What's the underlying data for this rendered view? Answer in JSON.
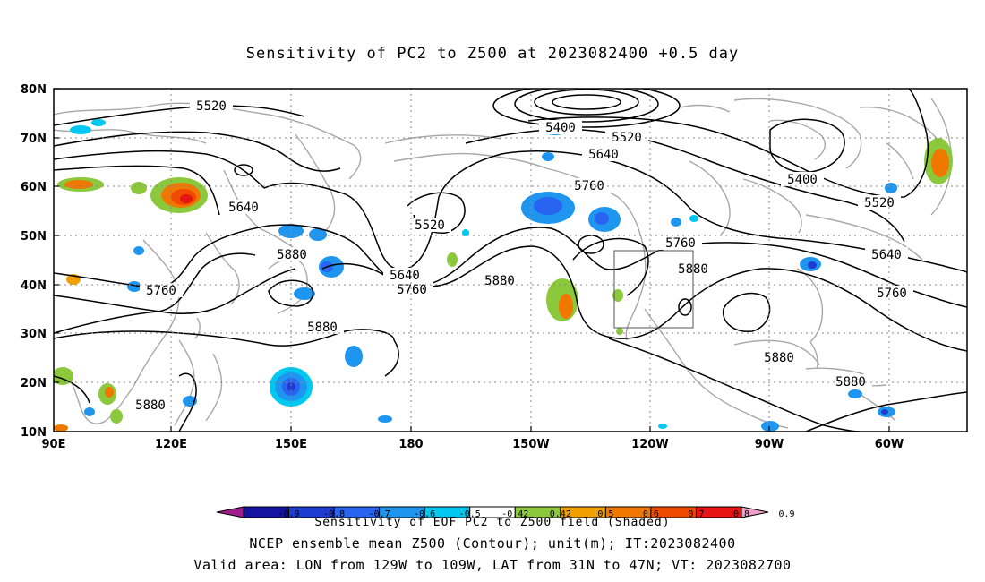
{
  "title": "Sensitivity of PC2 to Z500 at 2023082400 +0.5 day",
  "map": {
    "lat_labels": [
      "80N",
      "70N",
      "60N",
      "50N",
      "40N",
      "30N",
      "20N",
      "10N"
    ],
    "lon_labels": [
      "90E",
      "120E",
      "150E",
      "180",
      "150W",
      "120W",
      "90W",
      "60W"
    ],
    "contour_labels": [
      "5520",
      "5640",
      "5400",
      "5520",
      "5640",
      "5760",
      "5400",
      "5520",
      "5520",
      "5640",
      "5880",
      "5640",
      "5760",
      "5760",
      "5880",
      "5760",
      "5880",
      "5640",
      "5760",
      "5880",
      "5880",
      "5880",
      "5880",
      "5880"
    ],
    "valid_box": {
      "lon_from": "129W",
      "lon_to": "109W",
      "lat_from": "31N",
      "lat_to": "47N"
    }
  },
  "colorbar": {
    "tick_labels": [
      "-0.9",
      "-0.8",
      "-0.7",
      "-0.6",
      "-0.5",
      "-0.42",
      "0.42",
      "0.5",
      "0.6",
      "0.7",
      "0.8",
      "0.9"
    ],
    "colors": [
      "#a01e8c",
      "#1414a0",
      "#1e3cd2",
      "#2864f0",
      "#1e96f0",
      "#00c8f0",
      "#ffffff",
      "#8cc83c",
      "#f0a000",
      "#f07800",
      "#f04a00",
      "#e61414",
      "#f0a0c8"
    ],
    "caption": "Sensitivity of EOF PC2 to Z500 field (Shaded)"
  },
  "captions": {
    "line1": "NCEP ensemble mean Z500 (Contour); unit(m); IT:2023082400",
    "line2": "Valid area: LON from 129W to 109W, LAT from 31N to 47N; VT: 2023082700"
  }
}
